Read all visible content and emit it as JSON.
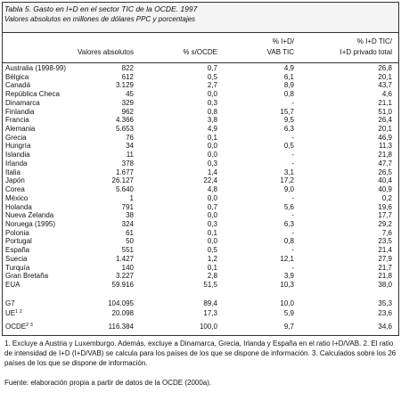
{
  "header": {
    "title": "Tabla 5. Gasto en I+D en el sector TIC de la OCDE. 1997",
    "subtitle": "Valores absolutos en millones de dólares PPC y porcentajes"
  },
  "table": {
    "columns": [
      [
        "Valores absolutos"
      ],
      [
        "% s/OCDE"
      ],
      [
        "% I+D/",
        "VAB TIC"
      ],
      [
        "% I+D TIC/",
        "I+D privado total"
      ]
    ],
    "rows": [
      [
        "Australia (1998-99)",
        "822",
        "0,7",
        "4,9",
        "26,8"
      ],
      [
        "Bélgica",
        "612",
        "0,5",
        "6,1",
        "20,1"
      ],
      [
        "Canadá",
        "3.129",
        "2,7",
        "8,9",
        "43,7"
      ],
      [
        "República Checa",
        "45",
        "0,0",
        "0,8",
        "4,6"
      ],
      [
        "Dinamarca",
        "329",
        "0,3",
        "-",
        "21,1"
      ],
      [
        "Finlandia",
        "962",
        "0,8",
        "15,7",
        "51,0"
      ],
      [
        "Francia",
        "4.366",
        "3,8",
        "9,5",
        "26,4"
      ],
      [
        "Alemania",
        "5.653",
        "4,9",
        "6,3",
        "20,1"
      ],
      [
        "Grecia",
        "76",
        "0,1",
        "-",
        "46,9"
      ],
      [
        "Hungría",
        "34",
        "0,0",
        "0,5",
        "11,3"
      ],
      [
        "Islandia",
        "11",
        "0,0",
        "-",
        "21,8"
      ],
      [
        "Irlanda",
        "378",
        "0,3",
        "-",
        "47,7"
      ],
      [
        "Italia",
        "1.677",
        "1,4",
        "3,1",
        "26,5"
      ],
      [
        "Japón",
        "26.127",
        "22,4",
        "17,2",
        "40,4"
      ],
      [
        "Corea",
        "5.640",
        "4,8",
        "9,0",
        "40,9"
      ],
      [
        "México",
        "1",
        "0,0",
        "-",
        "0,2"
      ],
      [
        "Holanda",
        "791",
        "0,7",
        "5,6",
        "19,6"
      ],
      [
        "Nueva Zelanda",
        "38",
        "0,0",
        "-",
        "17,7"
      ],
      [
        "Noruega (1995)",
        "324",
        "0,3",
        "6,3",
        "29,2"
      ],
      [
        "Polonia",
        "61",
        "0,1",
        "-",
        "7,6"
      ],
      [
        "Portugal",
        "50",
        "0,0",
        "0,8",
        "23,5"
      ],
      [
        "España",
        "551",
        "0,5",
        "-",
        "21,4"
      ],
      [
        "Suecia",
        "1.427",
        "1,2",
        "12,1",
        "27,9"
      ],
      [
        "Turquía",
        "140",
        "0,1",
        "-",
        "21,7"
      ],
      [
        "Gran Bretaña",
        "3.227",
        "2,8",
        "3,9",
        "21,8"
      ],
      [
        "EUA",
        "59.916",
        "51,5",
        "10,3",
        "38,0"
      ]
    ],
    "totals": [
      [
        {
          "label": "G7"
        },
        "104.095",
        "89,4",
        "10,0",
        "35,3"
      ],
      [
        {
          "label": "UE",
          "sup": "1 2"
        },
        "20.098",
        "17,3",
        "5,9",
        "23,6"
      ],
      [
        {
          "label": "OCDE",
          "sup": "2 3"
        },
        "116.384",
        "100,0",
        "9,7",
        "34,6"
      ]
    ]
  },
  "footnotes": "1. Excluye a Austria y Luxemburgo. Además, excluye a Dinamarca, Grecia, Irlanda y España en el ratio I+D/VAB. 2. El ratio de intensidad de I+D (I+D/VAB) se calcula para los países de los que se dispone de información. 3. Calculados sobre los 26 países de los que se dispone de información.",
  "source": "Fuente: elaboración propia a partir de datos de la OCDE (2000a)."
}
